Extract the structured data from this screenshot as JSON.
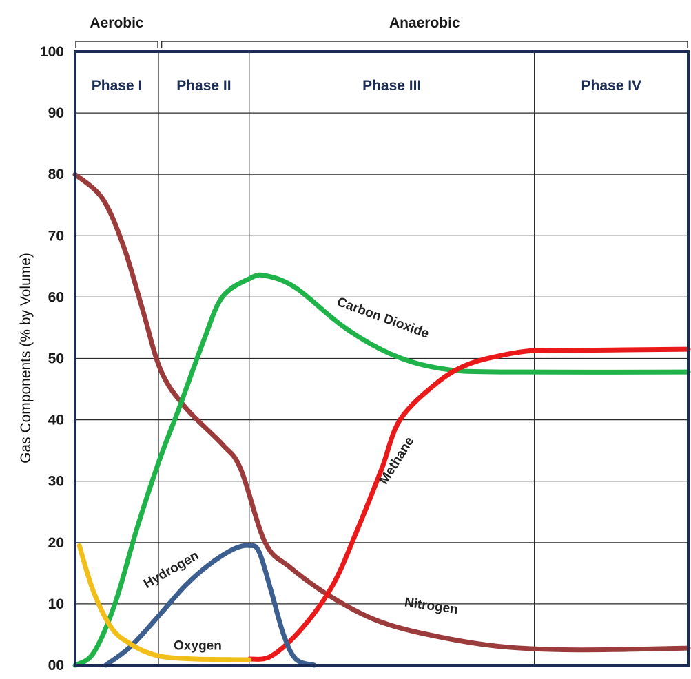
{
  "chart_data": {
    "type": "line",
    "ylabel": "Gas Components (% by Volume)",
    "ylim": [
      0,
      100
    ],
    "xlim": [
      0,
      100
    ],
    "y_ticks": [
      "00",
      "10",
      "20",
      "30",
      "40",
      "50",
      "60",
      "70",
      "80",
      "90",
      "100"
    ],
    "grid": true,
    "brackets": [
      {
        "label": "Aerobic",
        "from": 0,
        "to": 13.6
      },
      {
        "label": "Anaerobic",
        "from": 14.0,
        "to": 100
      }
    ],
    "phases": [
      {
        "label": "Phase I",
        "from": 0,
        "to": 13.6
      },
      {
        "label": "Phase II",
        "from": 13.6,
        "to": 28.4
      },
      {
        "label": "Phase III",
        "from": 28.4,
        "to": 74.9
      },
      {
        "label": "Phase IV",
        "from": 74.9,
        "to": 100
      }
    ],
    "series": [
      {
        "name": "Nitrogen",
        "color": "#9b3b3b",
        "points": [
          [
            0,
            80
          ],
          [
            4.5,
            76
          ],
          [
            8,
            68
          ],
          [
            11,
            58
          ],
          [
            14,
            48
          ],
          [
            18,
            42
          ],
          [
            24,
            36
          ],
          [
            27,
            32
          ],
          [
            31,
            20
          ],
          [
            35,
            16
          ],
          [
            42,
            11
          ],
          [
            50,
            7
          ],
          [
            60,
            4.5
          ],
          [
            70,
            3
          ],
          [
            82,
            2.5
          ],
          [
            100,
            2.8
          ]
        ],
        "label_at": [
          58,
          9
        ]
      },
      {
        "name": "Carbon Dioxide",
        "color": "#1fb34a",
        "points": [
          [
            0,
            0
          ],
          [
            3,
            2
          ],
          [
            6.5,
            10
          ],
          [
            10,
            22
          ],
          [
            13.6,
            33
          ],
          [
            17,
            42
          ],
          [
            21,
            53
          ],
          [
            24,
            60
          ],
          [
            28.4,
            63
          ],
          [
            31,
            63.5
          ],
          [
            36,
            61.5
          ],
          [
            44,
            55
          ],
          [
            52,
            50.5
          ],
          [
            60,
            48.3
          ],
          [
            70,
            47.8
          ],
          [
            100,
            47.8
          ]
        ],
        "label_at": [
          50,
          56
        ]
      },
      {
        "name": "Methane",
        "color": "#ea1a1a",
        "points": [
          [
            28.4,
            1
          ],
          [
            32,
            1.5
          ],
          [
            37,
            6
          ],
          [
            42,
            13
          ],
          [
            46,
            22
          ],
          [
            50,
            32
          ],
          [
            53,
            40
          ],
          [
            59,
            46
          ],
          [
            64,
            49
          ],
          [
            70,
            50.6
          ],
          [
            75,
            51.3
          ],
          [
            80,
            51.3
          ],
          [
            100,
            51.5
          ]
        ],
        "label_at": [
          53,
          33
        ]
      },
      {
        "name": "Hydrogen",
        "color": "#3d5f8f",
        "points": [
          [
            5,
            0
          ],
          [
            9,
            3
          ],
          [
            13.6,
            8
          ],
          [
            18,
            13
          ],
          [
            22,
            16.5
          ],
          [
            26,
            19
          ],
          [
            28.4,
            19.5
          ],
          [
            30,
            18.5
          ],
          [
            32,
            12
          ],
          [
            34,
            5
          ],
          [
            36,
            1
          ],
          [
            39,
            0
          ]
        ],
        "label_at": [
          16,
          15
        ]
      },
      {
        "name": "Oxygen",
        "color": "#f2bf1a",
        "points": [
          [
            0.7,
            19.5
          ],
          [
            3,
            12
          ],
          [
            6,
            6
          ],
          [
            9,
            3.5
          ],
          [
            12,
            2
          ],
          [
            15,
            1.3
          ],
          [
            20,
            1
          ],
          [
            28.4,
            0.9
          ]
        ],
        "label_at": [
          20,
          2.5
        ]
      }
    ]
  }
}
